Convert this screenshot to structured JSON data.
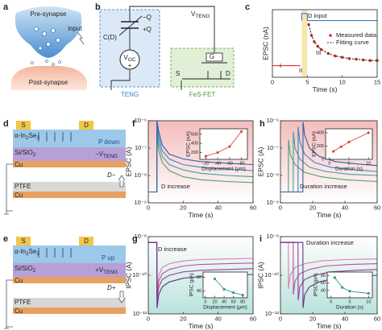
{
  "labels": [
    "a",
    "b",
    "c",
    "d",
    "e",
    "f",
    "g",
    "h",
    "i"
  ],
  "a": {
    "pre": "Pre-synapse",
    "input": "input",
    "post": "Post-synapse"
  },
  "b": {
    "minus_q": "−Q",
    "plus_q": "+Q",
    "cd": "C(D)",
    "voc": [
      "V",
      "OC"
    ],
    "source_plus": "+",
    "vteng": [
      "V",
      "TENG"
    ],
    "g": "G",
    "s": "S",
    "d": "D",
    "teng": "TENG",
    "fet": "FeS-FET"
  },
  "d": {
    "s": "S",
    "d": "D",
    "layer1": [
      "α-In",
      "2",
      "Se",
      "3"
    ],
    "pol": "P down",
    "layer2": [
      "Si/SiO",
      "2"
    ],
    "bias": [
      "−V",
      "TENG"
    ],
    "cu": "Cu",
    "move": "D−",
    "ptfe": "PTFE",
    "cu2": "Cu"
  },
  "e": {
    "s": "S",
    "d": "D",
    "layer1": [
      "α-In",
      "2",
      "Se",
      "3"
    ],
    "pol": "P up",
    "layer2": [
      "Si/SiO",
      "2"
    ],
    "bias": [
      "+V",
      "TENG"
    ],
    "cu": "Cu",
    "move": "D+",
    "ptfe": "PTFE",
    "cu2": "Cu"
  },
  "chart_data": [
    {
      "type": "line",
      "xlabel": "Time (s)",
      "ylabel": "EPSC (nA)",
      "xlim": [
        0,
        15
      ],
      "xticks": [
        0,
        5,
        10,
        15
      ],
      "ylim": [
        0,
        10.5
      ],
      "yticks": [],
      "shade": [
        4.2,
        5
      ],
      "shade_color": "#f6e6b0",
      "annotations": [
        "D input",
        "I",
        "II",
        "III"
      ],
      "legend": "right",
      "series": [
        {
          "color": "#3a7fc4",
          "x": [
            4.2,
            4.2,
            5,
            5,
            15
          ],
          "values": [
            8.8,
            9.9,
            9.9,
            8.8,
            8.8
          ]
        },
        {
          "color": "#e0302a",
          "x": [
            0,
            4
          ],
          "values": [
            1.8,
            1.8
          ]
        },
        {
          "name": "Measured data",
          "color": "#e0302a",
          "style": "dots",
          "x": [
            5.2,
            5.6,
            6,
            6.5,
            7,
            8,
            9,
            10,
            11,
            12,
            13,
            14,
            15
          ],
          "values": [
            8.2,
            6.5,
            5.5,
            4.8,
            4.3,
            3.7,
            3.3,
            3.1,
            2.9,
            2.8,
            2.7,
            2.6,
            2.6
          ]
        },
        {
          "name": "Fitting curve",
          "color": "#333333",
          "style": "dashed",
          "x": [
            5.2,
            5.6,
            6,
            6.5,
            7,
            8,
            9,
            10,
            11,
            12,
            13,
            14,
            15
          ],
          "values": [
            8.2,
            6.5,
            5.5,
            4.8,
            4.3,
            3.7,
            3.3,
            3.1,
            2.9,
            2.8,
            2.7,
            2.6,
            2.6
          ]
        }
      ]
    },
    {
      "type": "line",
      "log_y": true,
      "xlabel": "Time (s)",
      "ylabel": "EPSC (A)",
      "xlim": [
        0,
        60
      ],
      "xticks": [
        0,
        20,
        40,
        60
      ],
      "ylim": [
        1e-09,
        1e-06
      ],
      "yticks": [
        {
          "value": 1e-09,
          "label": "10⁻⁹"
        },
        {
          "value": 1e-08,
          "label": "10⁻⁸"
        },
        {
          "value": 1e-07,
          "label": "10⁻⁷"
        },
        {
          "value": 1e-06,
          "label": "10⁻⁶"
        }
      ],
      "background": {
        "color": "#f4bcbc",
        "from": "top"
      },
      "annotations": [
        "D increase"
      ],
      "x": [
        0,
        4.9,
        5,
        6,
        8,
        12,
        20,
        30,
        45,
        60
      ],
      "series": [
        {
          "color": "#4aa36c",
          "values": [
            2.5e-09,
            2.5e-09,
            3e-07,
            8e-08,
            3e-08,
            1.5e-08,
            9e-09,
            7e-09,
            6e-09,
            5.5e-09
          ]
        },
        {
          "color": "#3aa0a0",
          "values": [
            2.5e-09,
            2.5e-09,
            5e-07,
            1.5e-07,
            5e-08,
            2.5e-08,
            1.6e-08,
            1.2e-08,
            1e-08,
            9e-09
          ]
        },
        {
          "color": "#3b84c4",
          "values": [
            2.5e-09,
            2.5e-09,
            8e-07,
            2.5e-07,
            8e-08,
            4e-08,
            2.5e-08,
            2e-08,
            1.7e-08,
            1.5e-08
          ]
        },
        {
          "color": "#2d5fa8",
          "values": [
            2.5e-09,
            2.5e-09,
            1e-06,
            4e-07,
            1.3e-07,
            6e-08,
            4e-08,
            3.2e-08,
            2.8e-08,
            2.5e-08
          ]
        }
      ]
    },
    {
      "type": "line",
      "xlabel": "Displacement (μm)",
      "ylabel": "EPSC (nA)",
      "xlim": [
        -10,
        -90
      ],
      "xticks": [
        -20,
        -40,
        -60,
        -80
      ],
      "ylim": [
        50,
        720
      ],
      "yticks": [
        200,
        400,
        600
      ],
      "series": [
        {
          "color": "#e0453a",
          "marker": true,
          "x": [
            -20,
            -40,
            -60,
            -80
          ],
          "values": [
            120,
            200,
            330,
            660
          ]
        }
      ]
    },
    {
      "type": "line",
      "log_y": true,
      "xlabel": "Time (s)",
      "ylabel": "EPSC (A)",
      "xlim": [
        0,
        60
      ],
      "xticks": [
        0,
        20,
        40,
        60
      ],
      "ylim": [
        1e-09,
        1e-06
      ],
      "yticks": [
        {
          "value": 1e-09,
          "label": "10⁻⁹"
        },
        {
          "value": 1e-08,
          "label": "10⁻⁸"
        },
        {
          "value": 1e-07,
          "label": "10⁻⁷"
        },
        {
          "value": 1e-06,
          "label": "10⁻⁶"
        }
      ],
      "background": {
        "color": "#f4bcbc",
        "from": "top"
      },
      "annotations": [
        "Duration increase"
      ],
      "series": [
        {
          "color": "#4aa36c",
          "x": [
            0,
            4.9,
            5,
            6,
            9,
            15,
            25,
            40,
            60
          ],
          "values": [
            2.5e-09,
            2.5e-09,
            2e-07,
            6e-08,
            2.5e-08,
            1.3e-08,
            9e-09,
            7e-09,
            6e-09
          ]
        },
        {
          "color": "#3aa0a0",
          "x": [
            0,
            7.9,
            8,
            9,
            12,
            18,
            28,
            43,
            60
          ],
          "values": [
            2.5e-09,
            2.5e-09,
            4e-07,
            1e-07,
            4e-08,
            2e-08,
            1.4e-08,
            1.1e-08,
            1e-08
          ]
        },
        {
          "color": "#3b84c4",
          "x": [
            0,
            10.9,
            11,
            12,
            15,
            21,
            31,
            46,
            60
          ],
          "values": [
            2.5e-09,
            2.5e-09,
            6e-07,
            1.7e-07,
            6e-08,
            3e-08,
            2e-08,
            1.6e-08,
            1.4e-08
          ]
        },
        {
          "color": "#2d5fa8",
          "x": [
            0,
            13.9,
            14,
            15,
            18,
            24,
            34,
            49,
            60
          ],
          "values": [
            2.5e-09,
            2.5e-09,
            9e-07,
            3e-07,
            1e-07,
            5e-08,
            3.2e-08,
            2.6e-08,
            2.3e-08
          ]
        }
      ]
    },
    {
      "type": "line",
      "xlabel": "Duration (s)",
      "ylabel": "EPSC (nA)",
      "xlim": [
        -1,
        11
      ],
      "xticks": [
        0,
        5,
        10
      ],
      "ylim": [
        0,
        460
      ],
      "yticks": [
        0,
        200,
        400
      ],
      "series": [
        {
          "color": "#e0453a",
          "marker": true,
          "x": [
            1,
            3,
            5,
            10
          ],
          "values": [
            120,
            190,
            260,
            400
          ]
        }
      ]
    },
    {
      "type": "line",
      "log_y": true,
      "xlabel": "Time (s)",
      "ylabel": "IPSC (A)",
      "xlim": [
        0,
        60
      ],
      "xticks": [
        0,
        20,
        40,
        60
      ],
      "ylim": [
        1e-12,
        1e-08
      ],
      "yticks": [
        {
          "value": 1e-12,
          "label": "10⁻¹²"
        },
        {
          "value": 1e-10,
          "label": "10⁻¹⁰"
        },
        {
          "value": 1e-08,
          "label": "10⁻⁸"
        }
      ],
      "background": {
        "color": "#b9e3dc",
        "from": "bottom"
      },
      "annotations": [
        "D increase"
      ],
      "x": [
        0,
        4.9,
        5,
        6,
        8,
        12,
        20,
        30,
        45,
        60
      ],
      "series": [
        {
          "color": "#e07ab0",
          "values": [
            5e-09,
            5e-09,
            2e-11,
            1e-10,
            2.5e-10,
            4e-10,
            5.5e-10,
            6.5e-10,
            7e-10,
            7.5e-10
          ]
        },
        {
          "color": "#c04e9e",
          "values": [
            5e-09,
            5e-09,
            1e-11,
            5e-11,
            1.2e-10,
            2e-10,
            3e-10,
            3.6e-10,
            4e-10,
            4.3e-10
          ]
        },
        {
          "color": "#9a3f9a",
          "values": [
            5e-09,
            5e-09,
            5e-12,
            2.5e-11,
            6e-11,
            1e-10,
            1.5e-10,
            1.8e-10,
            2e-10,
            2.2e-10
          ]
        },
        {
          "color": "#6a2f8a",
          "values": [
            5e-09,
            5e-09,
            2e-12,
            1e-11,
            2.5e-11,
            4.5e-11,
            7e-11,
            8.5e-11,
            1e-10,
            1.1e-10
          ]
        }
      ]
    },
    {
      "type": "line",
      "xlabel": "Displacement (μm)",
      "ylabel": "IPSC (pA)",
      "xlim": [
        -5,
        90
      ],
      "xticks": [
        0,
        20,
        40,
        60,
        80
      ],
      "ylim": [
        20,
        95
      ],
      "yticks": [
        40,
        80
      ],
      "series": [
        {
          "color": "#2e9d7c",
          "marker": true,
          "x": [
            20,
            40,
            60,
            80
          ],
          "values": [
            75,
            45,
            35,
            28
          ]
        }
      ]
    },
    {
      "type": "line",
      "log_y": true,
      "xlabel": "Time (s)",
      "ylabel": "IPSC (A)",
      "xlim": [
        0,
        60
      ],
      "xticks": [
        0,
        20,
        40,
        60
      ],
      "ylim": [
        1e-12,
        1e-08
      ],
      "yticks": [
        {
          "value": 1e-12,
          "label": "10⁻¹²"
        },
        {
          "value": 1e-10,
          "label": "10⁻¹⁰"
        },
        {
          "value": 1e-08,
          "label": "10⁻⁸"
        }
      ],
      "background": {
        "color": "#b9e3dc",
        "from": "bottom"
      },
      "annotations": [
        "Duration increase"
      ],
      "series": [
        {
          "color": "#e07ab0",
          "x": [
            0,
            4.9,
            5,
            6,
            9,
            15,
            25,
            40,
            60
          ],
          "values": [
            5e-09,
            5e-09,
            2e-11,
            1e-10,
            2.5e-10,
            4e-10,
            5.5e-10,
            6.5e-10,
            7e-10
          ]
        },
        {
          "color": "#c04e9e",
          "x": [
            0,
            7.9,
            8,
            9,
            12,
            18,
            28,
            43,
            60
          ],
          "values": [
            5e-09,
            5e-09,
            1e-11,
            5e-11,
            1.2e-10,
            2e-10,
            3e-10,
            3.6e-10,
            4e-10
          ]
        },
        {
          "color": "#9a3f9a",
          "x": [
            0,
            10.9,
            11,
            12,
            15,
            21,
            31,
            46,
            60
          ],
          "values": [
            5e-09,
            5e-09,
            5e-12,
            2.5e-11,
            6e-11,
            1e-10,
            1.5e-10,
            1.8e-10,
            2e-10
          ]
        },
        {
          "color": "#6a2f8a",
          "x": [
            0,
            13.9,
            14,
            15,
            18,
            24,
            34,
            49,
            60
          ],
          "values": [
            5e-09,
            5e-09,
            2e-12,
            1e-11,
            2.5e-11,
            4.5e-11,
            7e-11,
            8.5e-11,
            1e-10
          ]
        }
      ]
    },
    {
      "type": "line",
      "xlabel": "Duration (s)",
      "ylabel": "IPSC (pA)",
      "xlim": [
        -1,
        11
      ],
      "xticks": [
        0,
        5,
        10
      ],
      "ylim": [
        20,
        90
      ],
      "yticks": [
        40,
        60,
        80
      ],
      "series": [
        {
          "color": "#2e9d7c",
          "marker": true,
          "x": [
            1,
            3,
            5,
            10
          ],
          "values": [
            75,
            48,
            38,
            32
          ]
        }
      ]
    }
  ]
}
